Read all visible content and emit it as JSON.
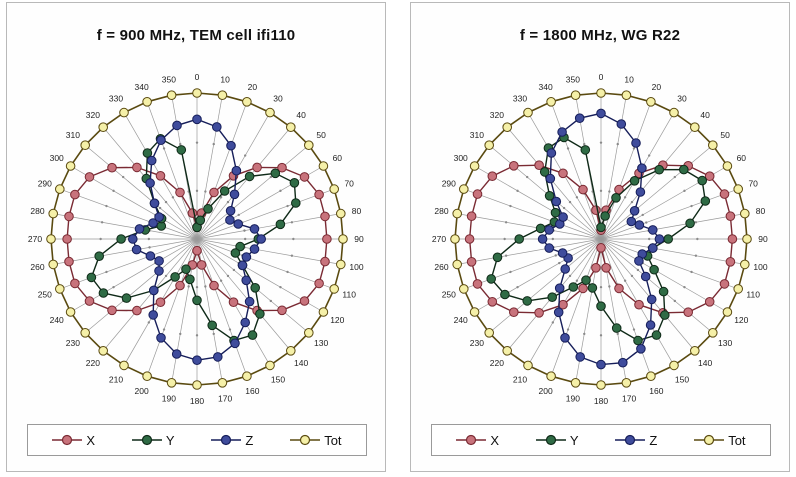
{
  "chart_data": [
    {
      "type": "polar",
      "title": "f = 900 MHz, TEM cell ifi110",
      "angle_labels": [
        "0",
        "10",
        "20",
        "30",
        "40",
        "50",
        "60",
        "70",
        "80",
        "90",
        "100",
        "110",
        "120",
        "130",
        "140",
        "150",
        "160",
        "170",
        "180",
        "190",
        "200",
        "210",
        "220",
        "230",
        "240",
        "250",
        "260",
        "270",
        "280",
        "290",
        "300",
        "310",
        "320",
        "330",
        "340",
        "350"
      ],
      "angles_deg": [
        0,
        10,
        20,
        30,
        40,
        50,
        60,
        70,
        80,
        90,
        100,
        110,
        120,
        130,
        140,
        150,
        160,
        170,
        180,
        190,
        200,
        210,
        220,
        230,
        240,
        250,
        260,
        270,
        280,
        290,
        300,
        310,
        320,
        330,
        340,
        350
      ],
      "rmax": 1.0,
      "grid": true,
      "legend_position": "bottom",
      "series": [
        {
          "name": "X",
          "color": "#c8737c",
          "stroke": "#7a2a33",
          "values": [
            0.08,
            0.18,
            0.34,
            0.5,
            0.64,
            0.76,
            0.85,
            0.89,
            0.89,
            0.89,
            0.89,
            0.89,
            0.85,
            0.76,
            0.64,
            0.5,
            0.34,
            0.18,
            0.08,
            0.18,
            0.34,
            0.5,
            0.64,
            0.76,
            0.85,
            0.89,
            0.89,
            0.89,
            0.89,
            0.89,
            0.85,
            0.76,
            0.64,
            0.5,
            0.34,
            0.18
          ]
        },
        {
          "name": "Y",
          "color": "#2f6b45",
          "stroke": "#0f2a18",
          "values": [
            0.08,
            0.13,
            0.22,
            0.38,
            0.56,
            0.7,
            0.77,
            0.72,
            0.58,
            0.42,
            0.3,
            0.28,
            0.36,
            0.52,
            0.67,
            0.76,
            0.74,
            0.6,
            0.42,
            0.28,
            0.22,
            0.3,
            0.46,
            0.63,
            0.74,
            0.77,
            0.68,
            0.52,
            0.36,
            0.26,
            0.28,
            0.38,
            0.54,
            0.68,
            0.73,
            0.62
          ]
        },
        {
          "name": "Z",
          "color": "#3f4c9c",
          "stroke": "#161e5a",
          "values": [
            0.82,
            0.78,
            0.68,
            0.54,
            0.4,
            0.3,
            0.26,
            0.3,
            0.4,
            0.44,
            0.4,
            0.36,
            0.36,
            0.44,
            0.56,
            0.66,
            0.76,
            0.82,
            0.83,
            0.8,
            0.72,
            0.6,
            0.46,
            0.34,
            0.3,
            0.34,
            0.42,
            0.44,
            0.4,
            0.32,
            0.3,
            0.38,
            0.5,
            0.62,
            0.72,
            0.79
          ]
        },
        {
          "name": "Tot",
          "color": "#f5f0a8",
          "stroke": "#5a4a10",
          "values": [
            1,
            1,
            1,
            1,
            1,
            1,
            1,
            1,
            1,
            1,
            1,
            1,
            1,
            1,
            1,
            1,
            1,
            1,
            1,
            1,
            1,
            1,
            1,
            1,
            1,
            1,
            1,
            1,
            1,
            1,
            1,
            1,
            1,
            1,
            1,
            1
          ]
        }
      ]
    },
    {
      "type": "polar",
      "title": "f = 1800 MHz, WG R22",
      "angle_labels": [
        "0",
        "10",
        "20",
        "30",
        "40",
        "50",
        "60",
        "70",
        "80",
        "90",
        "100",
        "110",
        "120",
        "130",
        "140",
        "150",
        "160",
        "170",
        "180",
        "190",
        "200",
        "210",
        "220",
        "230",
        "240",
        "250",
        "260",
        "270",
        "280",
        "290",
        "300",
        "310",
        "320",
        "330",
        "340",
        "350"
      ],
      "angles_deg": [
        0,
        10,
        20,
        30,
        40,
        50,
        60,
        70,
        80,
        90,
        100,
        110,
        120,
        130,
        140,
        150,
        160,
        170,
        180,
        190,
        200,
        210,
        220,
        230,
        240,
        250,
        260,
        270,
        280,
        290,
        300,
        310,
        320,
        330,
        340,
        350
      ],
      "rmax": 1.0,
      "grid": true,
      "legend_position": "bottom",
      "series": [
        {
          "name": "X",
          "color": "#c8737c",
          "stroke": "#7a2a33",
          "values": [
            0.06,
            0.2,
            0.36,
            0.52,
            0.66,
            0.78,
            0.86,
            0.9,
            0.9,
            0.9,
            0.9,
            0.9,
            0.86,
            0.78,
            0.66,
            0.52,
            0.36,
            0.2,
            0.06,
            0.2,
            0.36,
            0.52,
            0.66,
            0.78,
            0.86,
            0.9,
            0.9,
            0.9,
            0.9,
            0.9,
            0.86,
            0.78,
            0.66,
            0.52,
            0.36,
            0.2
          ]
        },
        {
          "name": "Y",
          "color": "#2f6b45",
          "stroke": "#0f2a18",
          "values": [
            0.08,
            0.16,
            0.3,
            0.46,
            0.62,
            0.74,
            0.8,
            0.76,
            0.62,
            0.46,
            0.36,
            0.34,
            0.42,
            0.56,
            0.68,
            0.76,
            0.74,
            0.62,
            0.46,
            0.34,
            0.3,
            0.38,
            0.52,
            0.66,
            0.76,
            0.8,
            0.72,
            0.56,
            0.42,
            0.34,
            0.36,
            0.46,
            0.6,
            0.72,
            0.74,
            0.62
          ]
        },
        {
          "name": "Z",
          "color": "#3f4c9c",
          "stroke": "#161e5a",
          "values": [
            0.86,
            0.8,
            0.7,
            0.56,
            0.42,
            0.3,
            0.24,
            0.28,
            0.36,
            0.4,
            0.36,
            0.3,
            0.3,
            0.4,
            0.54,
            0.68,
            0.8,
            0.86,
            0.86,
            0.82,
            0.72,
            0.58,
            0.44,
            0.32,
            0.26,
            0.28,
            0.36,
            0.4,
            0.36,
            0.3,
            0.3,
            0.4,
            0.54,
            0.68,
            0.78,
            0.84
          ]
        },
        {
          "name": "Tot",
          "color": "#f5f0a8",
          "stroke": "#5a4a10",
          "values": [
            1,
            1,
            1,
            1,
            1,
            1,
            1,
            1,
            1,
            1,
            1,
            1,
            1,
            1,
            1,
            1,
            1,
            1,
            1,
            1,
            1,
            1,
            1,
            1,
            1,
            1,
            1,
            1,
            1,
            1,
            1,
            1,
            1,
            1,
            1,
            1
          ]
        }
      ]
    }
  ]
}
